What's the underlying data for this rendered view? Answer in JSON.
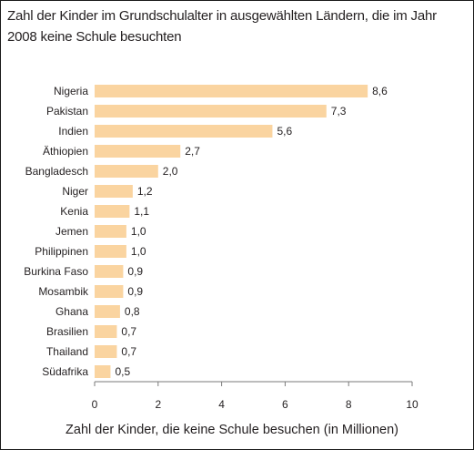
{
  "chart_data": {
    "type": "bar",
    "orientation": "horizontal",
    "title": "Zahl der Kinder im Grundschulalter in ausgewählten Ländern, die im Jahr 2008 keine Schule besuchten",
    "xlabel": "Zahl der Kinder, die keine Schule besuchen (in Millionen)",
    "ylabel": "",
    "categories": [
      "Nigeria",
      "Pakistan",
      "Indien",
      "Äthiopien",
      "Bangladesch",
      "Niger",
      "Kenia",
      "Jemen",
      "Philippinen",
      "Burkina Faso",
      "Mosambik",
      "Ghana",
      "Brasilien",
      "Thailand",
      "Südafrika"
    ],
    "values": [
      8.6,
      7.3,
      5.6,
      2.7,
      2.0,
      1.2,
      1.1,
      1.0,
      1.0,
      0.9,
      0.9,
      0.8,
      0.7,
      0.7,
      0.5
    ],
    "value_labels": [
      "8,6",
      "7,3",
      "5,6",
      "2,7",
      "2,0",
      "1,2",
      "1,1",
      "1,0",
      "1,0",
      "0,9",
      "0,9",
      "0,8",
      "0,7",
      "0,7",
      "0,5"
    ],
    "xlim": [
      0,
      10
    ],
    "xticks": [
      0,
      2,
      4,
      6,
      8,
      10
    ],
    "xtick_labels": [
      "0",
      "2",
      "4",
      "6",
      "8",
      "10"
    ],
    "grid": false,
    "bar_color": "#fad4a0",
    "axis_color": "#7a7a7a",
    "text_color": "#231f20"
  }
}
